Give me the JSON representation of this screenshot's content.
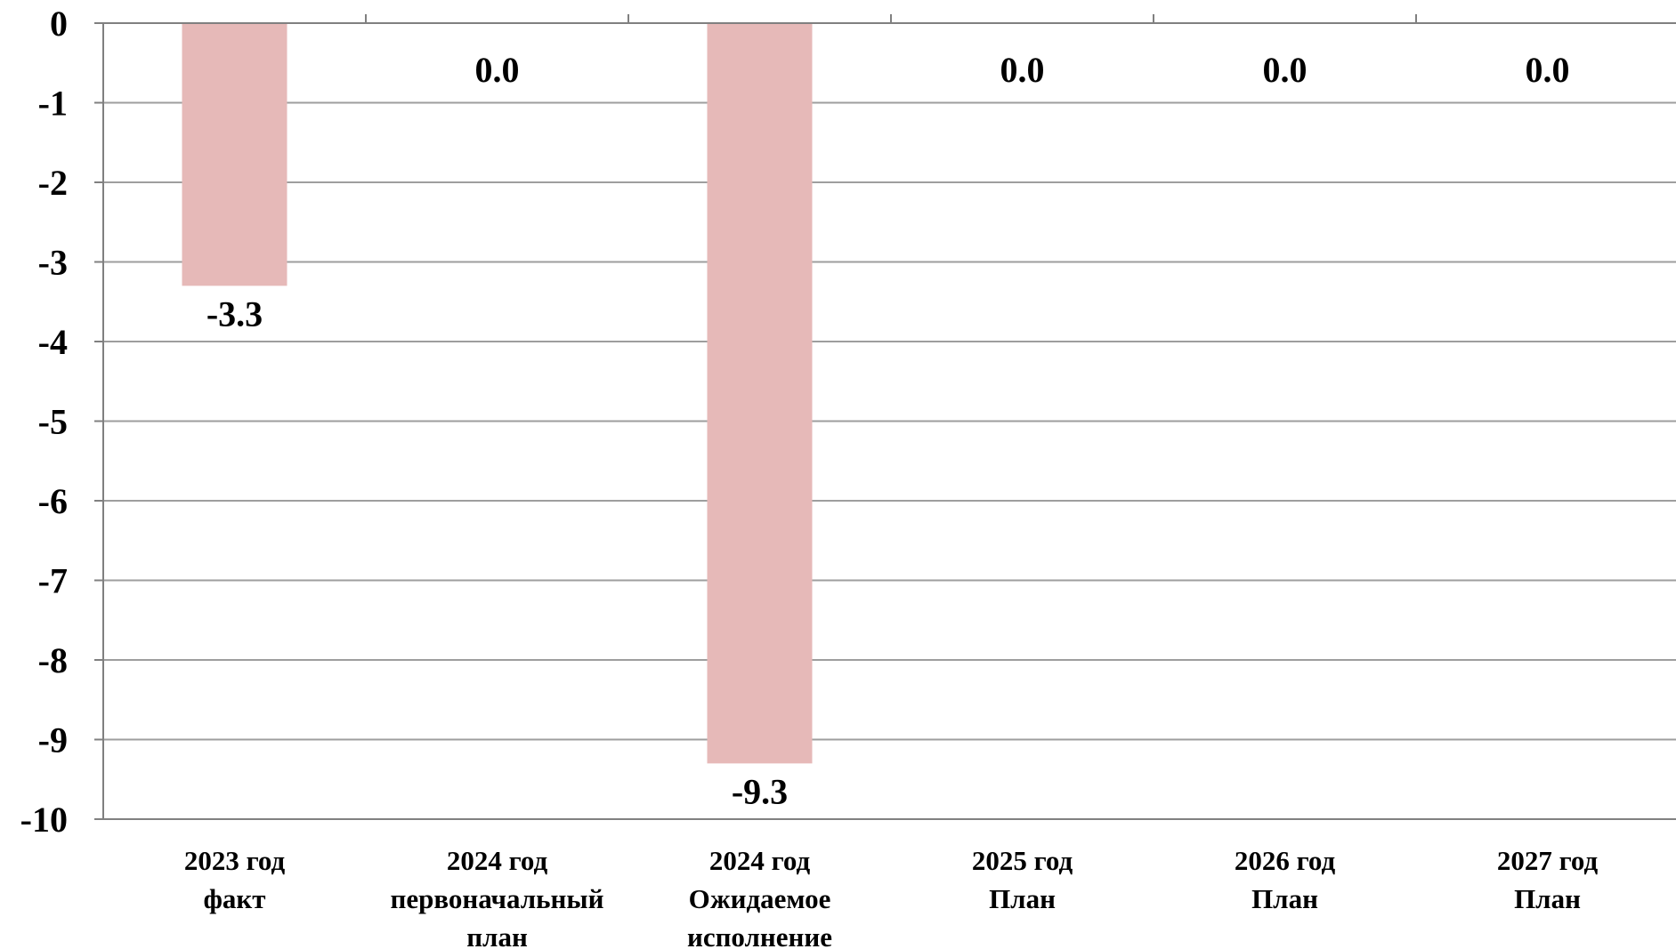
{
  "chart_data": {
    "type": "bar",
    "categories": [
      [
        "2023 год",
        "факт"
      ],
      [
        "2024 год",
        "первоначальный",
        "план"
      ],
      [
        "2024 год",
        "Ожидаемое",
        "исполнение"
      ],
      [
        "2025 год",
        "План"
      ],
      [
        "2026 год",
        "План"
      ],
      [
        "2027 год",
        "План"
      ]
    ],
    "values": [
      -3.3,
      0.0,
      -9.3,
      0.0,
      0.0,
      0.0
    ],
    "data_labels": [
      "-3.3",
      "0.0",
      "-9.3",
      "0.0",
      "0.0",
      "0.0"
    ],
    "ylim": [
      -10,
      0
    ],
    "yticks": [
      0,
      -1,
      -2,
      -3,
      -4,
      -5,
      -6,
      -7,
      -8,
      -9,
      -10
    ],
    "grid": true,
    "bar_color": "#e6b9b8",
    "title": "",
    "xlabel": "",
    "ylabel": ""
  }
}
